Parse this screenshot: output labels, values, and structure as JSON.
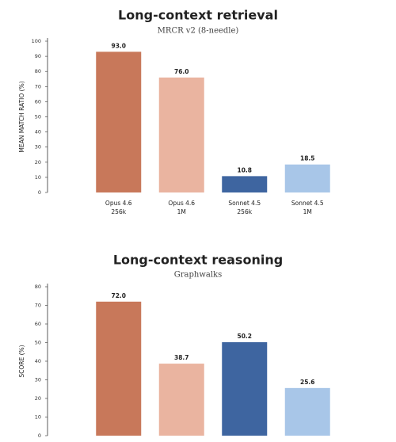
{
  "chart_data": [
    {
      "type": "bar",
      "title": "Long-context retrieval",
      "subtitle": "MRCR v2 (8-needle)",
      "y_label": "MEAN MATCH RATIO (%)",
      "categories": [
        [
          "Opus 4.6",
          "256k"
        ],
        [
          "Opus 4.6",
          "1M"
        ],
        [
          "Sonnet 4.5",
          "256k"
        ],
        [
          "Sonnet 4.5",
          "1M"
        ]
      ],
      "values": [
        93.0,
        76.0,
        10.8,
        18.5
      ],
      "value_labels": [
        "93.0",
        "76.0",
        "10.8",
        "18.5"
      ],
      "colors": [
        "#c8785a",
        "#eab4a0",
        "#3e65a0",
        "#a8c6e8"
      ],
      "ylim": [
        0,
        100
      ],
      "yticks": [
        0,
        10,
        20,
        30,
        40,
        50,
        60,
        70,
        80,
        90,
        100
      ]
    },
    {
      "type": "bar",
      "title": "Long-context reasoning",
      "subtitle": "Graphwalks",
      "y_label": "SCORE (%)",
      "categories": [
        null,
        null,
        null,
        null
      ],
      "values": [
        72.0,
        38.7,
        50.2,
        25.6
      ],
      "value_labels": [
        "72.0",
        "38.7",
        "50.2",
        "25.6"
      ],
      "colors": [
        "#c8785a",
        "#eab4a0",
        "#3e65a0",
        "#a8c6e8"
      ],
      "ylim": [
        0,
        80
      ],
      "yticks": [
        0,
        10,
        20,
        30,
        40,
        50,
        60,
        70,
        80
      ]
    }
  ]
}
